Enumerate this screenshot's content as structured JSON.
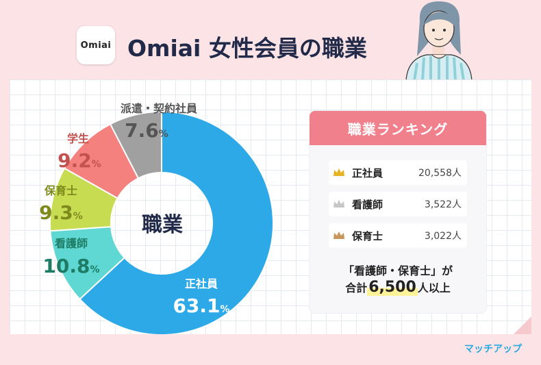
{
  "header": {
    "app_icon_text": "Omiai",
    "title": "Omiai 女性会員の職業"
  },
  "colors": {
    "seishain": "#2ea9e8",
    "kangoshi": "#5fd7d2",
    "hoikushi": "#c8dc52",
    "gakusei": "#f5817f",
    "haken": "#a0a0a0",
    "label_seishain": "#ffffff",
    "label_kangoshi": "#1d7c63",
    "label_hoikushi": "#7e8a1c",
    "label_gakusei": "#c1524d",
    "label_haken": "#555555",
    "ranking_header": "#f0808c",
    "brand": "#2aa9e0"
  },
  "chart_data": {
    "type": "pie",
    "center_label": "職業",
    "unit": "%",
    "slices": [
      {
        "label": "正社員",
        "value": 63.1,
        "value_text": "63.1"
      },
      {
        "label": "看護師",
        "value": 10.8,
        "value_text": "10.8"
      },
      {
        "label": "保育士",
        "value": 9.3,
        "value_text": "9.3"
      },
      {
        "label": "学生",
        "value": 9.2,
        "value_text": "9.2"
      },
      {
        "label": "派遣・契約社員",
        "value": 7.6,
        "value_text": "7.6"
      }
    ]
  },
  "ranking": {
    "title": "職業ランキング",
    "items": [
      {
        "name": "正社員",
        "count": "20,558人",
        "crown": "gold-crown-icon",
        "crown_color": "#e6b422"
      },
      {
        "name": "看護師",
        "count": "3,522人",
        "crown": "silver-crown-icon",
        "crown_color": "#c7c7c7"
      },
      {
        "name": "保育士",
        "count": "3,022人",
        "crown": "bronze-crown-icon",
        "crown_color": "#c8955a"
      }
    ],
    "summary_line1": "「看護師・保育士」が",
    "summary_prefix": "合計",
    "summary_number": "6,500",
    "summary_suffix": "人以上"
  },
  "brand": "マッチアップ"
}
